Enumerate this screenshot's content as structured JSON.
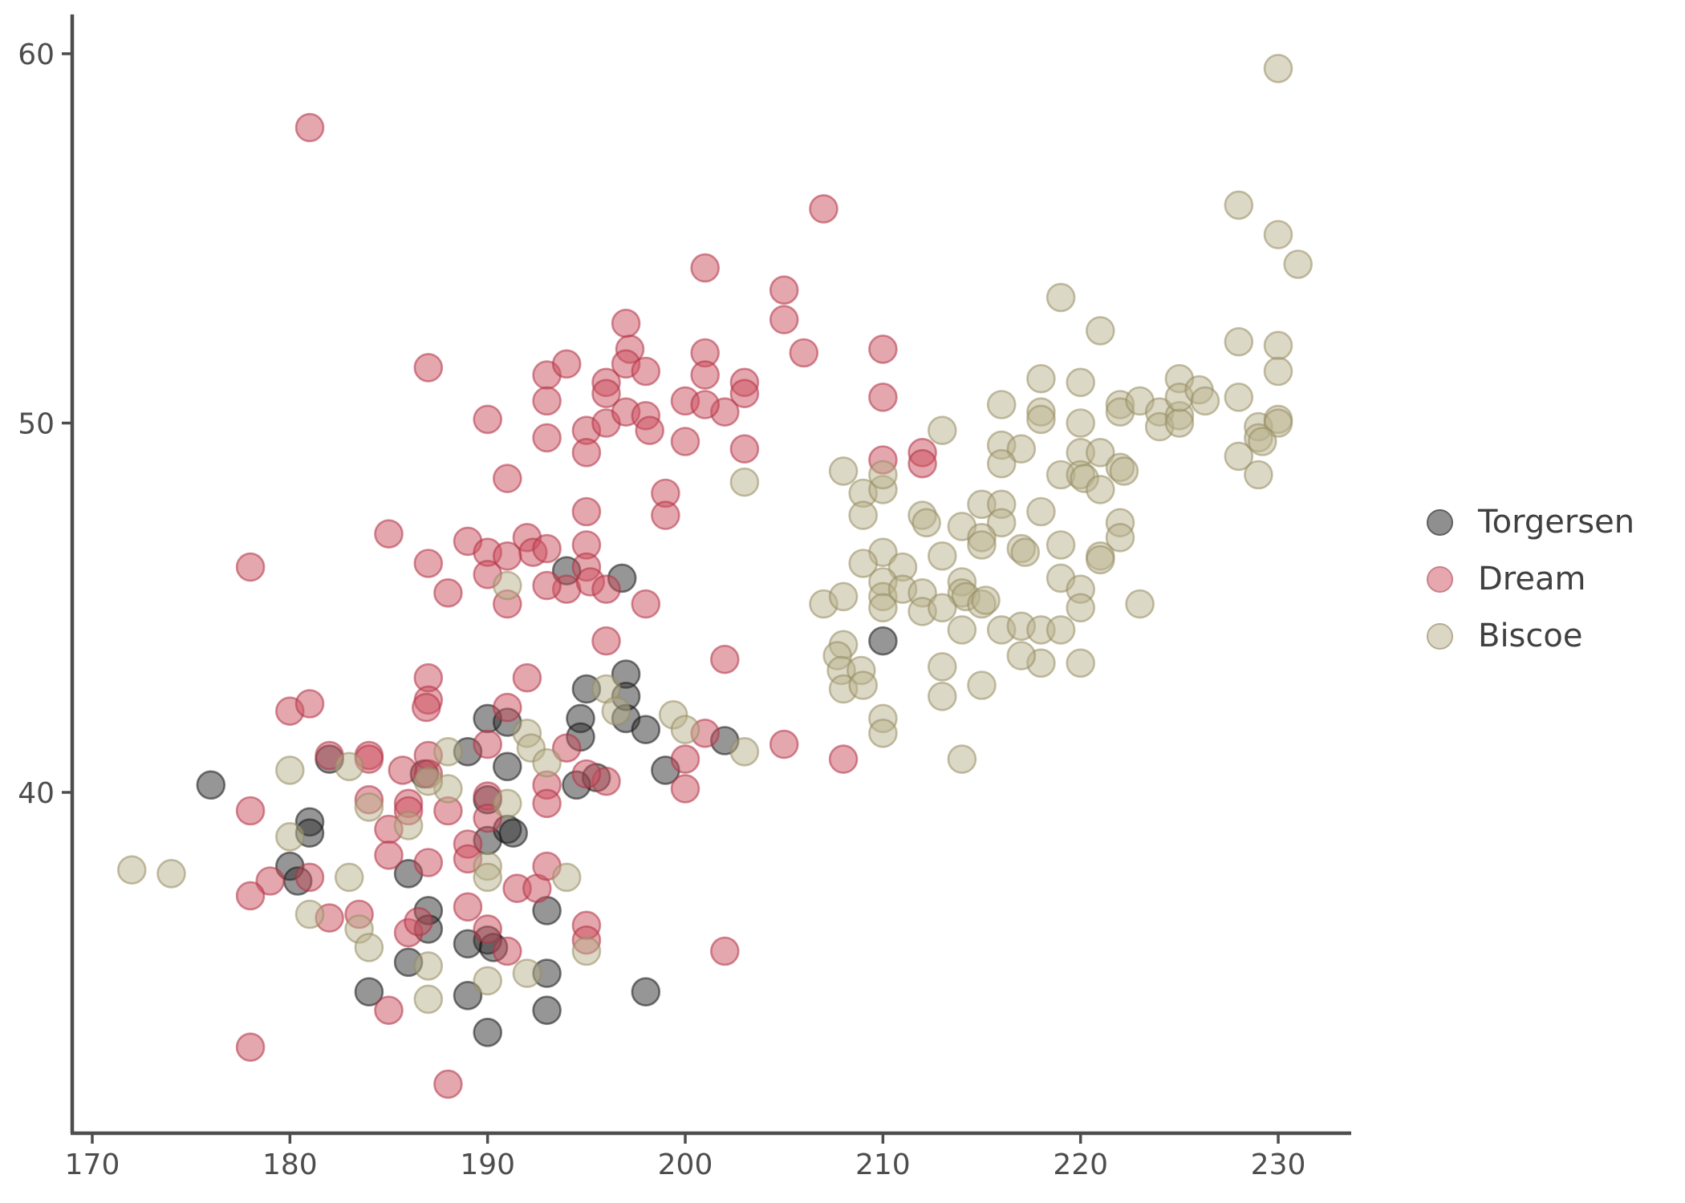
{
  "chart_data": {
    "type": "scatter",
    "title": "",
    "xlabel": "",
    "ylabel": "",
    "x_ticks": [
      170,
      180,
      190,
      200,
      210,
      220,
      230
    ],
    "y_ticks": [
      40,
      50,
      60
    ],
    "xlim": [
      169.0,
      233.7
    ],
    "ylim": [
      30.8,
      60.3
    ],
    "grid": false,
    "legend_position": "right",
    "marker": {
      "radius": 17,
      "fill_opacity": 0.5,
      "stroke_opacity": 0.55,
      "stroke_width": 2.6
    },
    "series": [
      {
        "name": "Torgersen",
        "fill_base": "#2e2e2e",
        "stroke_base": "#161616",
        "points": [
          [
            176,
            40.2
          ],
          [
            181,
            39.2
          ],
          [
            181,
            38.9
          ],
          [
            182,
            40.9
          ],
          [
            180,
            38.0
          ],
          [
            180.4,
            37.6
          ],
          [
            184,
            34.6
          ],
          [
            186,
            37.8
          ],
          [
            187,
            36.8
          ],
          [
            187,
            36.3
          ],
          [
            186,
            35.4
          ],
          [
            189,
            41.1
          ],
          [
            190,
            42.0
          ],
          [
            191,
            41.9
          ],
          [
            191,
            40.7
          ],
          [
            194.7,
            42.0
          ],
          [
            194.7,
            41.5
          ],
          [
            197,
            42.0
          ],
          [
            198,
            41.7
          ],
          [
            199,
            40.6
          ],
          [
            202,
            41.4
          ],
          [
            190,
            38.7
          ],
          [
            191,
            39.0
          ],
          [
            191.3,
            38.9
          ],
          [
            190,
            39.8
          ],
          [
            193,
            36.8
          ],
          [
            190,
            36.0
          ],
          [
            189,
            35.9
          ],
          [
            190.3,
            35.8
          ],
          [
            193,
            35.1
          ],
          [
            189,
            34.5
          ],
          [
            193,
            34.1
          ],
          [
            190,
            33.5
          ],
          [
            198,
            34.6
          ],
          [
            195,
            42.8
          ],
          [
            197,
            43.2
          ],
          [
            197,
            42.6
          ],
          [
            194,
            46.0
          ],
          [
            196.8,
            45.8
          ],
          [
            210,
            44.1
          ],
          [
            186.8,
            40.5
          ],
          [
            195.5,
            40.4
          ],
          [
            194.5,
            40.2
          ]
        ]
      },
      {
        "name": "Dream",
        "fill_base": "#cb4f5d",
        "stroke_base": "#b13246",
        "points": [
          [
            181,
            58.0
          ],
          [
            187,
            51.5
          ],
          [
            193,
            51.3
          ],
          [
            194,
            51.6
          ],
          [
            196,
            51.1
          ],
          [
            197,
            52.7
          ],
          [
            197.2,
            52.0
          ],
          [
            197,
            51.6
          ],
          [
            198,
            51.4
          ],
          [
            201,
            54.2
          ],
          [
            201,
            51.9
          ],
          [
            201,
            51.3
          ],
          [
            207,
            55.8
          ],
          [
            205,
            53.6
          ],
          [
            205,
            52.8
          ],
          [
            206,
            51.9
          ],
          [
            210,
            52.0
          ],
          [
            203,
            51.1
          ],
          [
            203,
            50.8
          ],
          [
            202,
            50.3
          ],
          [
            210,
            50.7
          ],
          [
            203,
            49.3
          ],
          [
            210,
            49.0
          ],
          [
            212,
            49.2
          ],
          [
            212,
            48.9
          ],
          [
            185,
            47.0
          ],
          [
            178,
            46.1
          ],
          [
            180,
            42.2
          ],
          [
            181,
            42.4
          ],
          [
            184,
            41.0
          ],
          [
            190,
            50.1
          ],
          [
            193,
            50.6
          ],
          [
            193,
            49.6
          ],
          [
            195,
            49.8
          ],
          [
            195,
            49.2
          ],
          [
            196,
            50.0
          ],
          [
            196,
            50.8
          ],
          [
            197,
            50.3
          ],
          [
            198,
            50.2
          ],
          [
            198.2,
            49.8
          ],
          [
            200,
            50.6
          ],
          [
            201,
            50.5
          ],
          [
            200,
            49.5
          ],
          [
            191,
            48.5
          ],
          [
            199,
            48.1
          ],
          [
            199,
            47.5
          ],
          [
            195,
            47.6
          ],
          [
            189,
            46.8
          ],
          [
            192,
            46.9
          ],
          [
            192.3,
            46.5
          ],
          [
            190,
            46.5
          ],
          [
            191,
            46.4
          ],
          [
            193,
            46.6
          ],
          [
            187,
            46.2
          ],
          [
            195,
            46.7
          ],
          [
            195,
            46.1
          ],
          [
            194,
            45.5
          ],
          [
            190,
            45.9
          ],
          [
            191,
            45.1
          ],
          [
            193,
            45.6
          ],
          [
            195.2,
            45.7
          ],
          [
            196,
            45.5
          ],
          [
            188,
            45.4
          ],
          [
            198,
            45.1
          ],
          [
            196,
            44.1
          ],
          [
            187,
            43.1
          ],
          [
            187,
            42.5
          ],
          [
            186.9,
            42.3
          ],
          [
            192,
            43.1
          ],
          [
            191,
            42.3
          ],
          [
            194,
            41.2
          ],
          [
            202,
            43.6
          ],
          [
            201,
            41.6
          ],
          [
            205,
            41.3
          ],
          [
            208,
            40.9
          ],
          [
            178,
            39.5
          ],
          [
            182,
            41.0
          ],
          [
            184,
            40.9
          ],
          [
            184,
            39.8
          ],
          [
            185,
            39.0
          ],
          [
            179,
            37.6
          ],
          [
            178,
            37.2
          ],
          [
            181,
            37.7
          ],
          [
            185,
            38.3
          ],
          [
            182,
            36.6
          ],
          [
            183.5,
            36.7
          ],
          [
            185,
            34.1
          ],
          [
            178,
            33.1
          ],
          [
            188,
            32.1
          ],
          [
            187,
            41.0
          ],
          [
            187,
            40.5
          ],
          [
            190,
            41.3
          ],
          [
            193,
            40.2
          ],
          [
            193,
            39.7
          ],
          [
            196,
            40.3
          ],
          [
            200,
            40.1
          ],
          [
            186,
            39.7
          ],
          [
            186,
            39.5
          ],
          [
            188,
            39.5
          ],
          [
            190,
            39.9
          ],
          [
            190,
            39.3
          ],
          [
            189,
            38.6
          ],
          [
            189,
            38.2
          ],
          [
            191.5,
            37.4
          ],
          [
            192.5,
            37.4
          ],
          [
            193,
            38.0
          ],
          [
            189,
            36.9
          ],
          [
            190,
            36.3
          ],
          [
            191,
            35.7
          ],
          [
            195,
            36.4
          ],
          [
            195,
            36.0
          ],
          [
            186,
            36.2
          ],
          [
            186.5,
            36.5
          ],
          [
            187,
            38.1
          ],
          [
            202,
            35.7
          ],
          [
            200,
            40.9
          ],
          [
            185.7,
            40.6
          ],
          [
            195,
            40.5
          ]
        ]
      },
      {
        "name": "Biscoe",
        "fill_base": "#b9b18d",
        "stroke_base": "#958c60",
        "points": [
          [
            230,
            59.6
          ],
          [
            228,
            55.9
          ],
          [
            230,
            55.1
          ],
          [
            231,
            54.3
          ],
          [
            219,
            53.4
          ],
          [
            221,
            52.5
          ],
          [
            228,
            52.2
          ],
          [
            230,
            52.1
          ],
          [
            230,
            51.4
          ],
          [
            225,
            51.2
          ],
          [
            218,
            51.2
          ],
          [
            220,
            51.1
          ],
          [
            222,
            50.5
          ],
          [
            222,
            50.3
          ],
          [
            223,
            50.6
          ],
          [
            224,
            50.3
          ],
          [
            224,
            49.9
          ],
          [
            225,
            50.2
          ],
          [
            225,
            50.0
          ],
          [
            225,
            50.7
          ],
          [
            226,
            50.9
          ],
          [
            226.3,
            50.6
          ],
          [
            228,
            50.7
          ],
          [
            220,
            50.0
          ],
          [
            218,
            50.3
          ],
          [
            218,
            50.1
          ],
          [
            229,
            49.9
          ],
          [
            230,
            50.1
          ],
          [
            230,
            50.0
          ],
          [
            229,
            49.6
          ],
          [
            229.2,
            49.5
          ],
          [
            228,
            49.1
          ],
          [
            229,
            48.6
          ],
          [
            220,
            49.2
          ],
          [
            221,
            49.2
          ],
          [
            219,
            48.6
          ],
          [
            220,
            48.6
          ],
          [
            220.2,
            48.5
          ],
          [
            222,
            48.8
          ],
          [
            222.2,
            48.7
          ],
          [
            221,
            48.2
          ],
          [
            218,
            47.6
          ],
          [
            216,
            50.5
          ],
          [
            216,
            49.4
          ],
          [
            217,
            49.3
          ],
          [
            216,
            48.9
          ],
          [
            213,
            49.8
          ],
          [
            208,
            48.7
          ],
          [
            209,
            48.1
          ],
          [
            210,
            48.2
          ],
          [
            210,
            48.6
          ],
          [
            209,
            47.5
          ],
          [
            212,
            47.5
          ],
          [
            212.2,
            47.3
          ],
          [
            215,
            47.8
          ],
          [
            216,
            47.8
          ],
          [
            216,
            47.3
          ],
          [
            214,
            47.2
          ],
          [
            215,
            46.9
          ],
          [
            215,
            46.7
          ],
          [
            217,
            46.6
          ],
          [
            217.2,
            46.5
          ],
          [
            210,
            46.5
          ],
          [
            209,
            46.2
          ],
          [
            211,
            46.1
          ],
          [
            213,
            46.4
          ],
          [
            214,
            45.7
          ],
          [
            214,
            45.4
          ],
          [
            214.2,
            45.3
          ],
          [
            210,
            45.7
          ],
          [
            210,
            45.3
          ],
          [
            210,
            45.0
          ],
          [
            211,
            45.5
          ],
          [
            212,
            45.4
          ],
          [
            212,
            44.9
          ],
          [
            213,
            45.0
          ],
          [
            215,
            45.1
          ],
          [
            215.2,
            45.2
          ],
          [
            207,
            45.1
          ],
          [
            208,
            45.3
          ],
          [
            214,
            44.4
          ],
          [
            216,
            44.4
          ],
          [
            217,
            44.5
          ],
          [
            218,
            44.4
          ],
          [
            203,
            48.4
          ],
          [
            222,
            47.3
          ],
          [
            222,
            46.9
          ],
          [
            219,
            46.7
          ],
          [
            221,
            46.4
          ],
          [
            221,
            46.3
          ],
          [
            219,
            45.8
          ],
          [
            220,
            45.5
          ],
          [
            220,
            45.0
          ],
          [
            223,
            45.1
          ],
          [
            219,
            44.4
          ],
          [
            220,
            43.5
          ],
          [
            218,
            43.5
          ],
          [
            208,
            44.0
          ],
          [
            207.7,
            43.7
          ],
          [
            207.9,
            43.3
          ],
          [
            208.9,
            43.3
          ],
          [
            208,
            42.8
          ],
          [
            209,
            42.9
          ],
          [
            213,
            43.4
          ],
          [
            215,
            42.9
          ],
          [
            213,
            42.6
          ],
          [
            217,
            43.7
          ],
          [
            210,
            42.0
          ],
          [
            210,
            41.6
          ],
          [
            203,
            41.1
          ],
          [
            214,
            40.9
          ],
          [
            172,
            37.9
          ],
          [
            174,
            37.8
          ],
          [
            180,
            40.6
          ],
          [
            183,
            40.7
          ],
          [
            184,
            39.6
          ],
          [
            180,
            38.8
          ],
          [
            183,
            37.7
          ],
          [
            181,
            36.7
          ],
          [
            183.5,
            36.3
          ],
          [
            184,
            35.8
          ],
          [
            188,
            41.1
          ],
          [
            188,
            40.1
          ],
          [
            186,
            39.1
          ],
          [
            191,
            39.7
          ],
          [
            190,
            38.0
          ],
          [
            190,
            37.7
          ],
          [
            192,
            41.6
          ],
          [
            192.2,
            41.2
          ],
          [
            193,
            40.8
          ],
          [
            194,
            37.7
          ],
          [
            192,
            35.1
          ],
          [
            190,
            34.9
          ],
          [
            187,
            35.3
          ],
          [
            187,
            34.4
          ],
          [
            195,
            35.7
          ],
          [
            191,
            45.6
          ],
          [
            196,
            42.8
          ],
          [
            196.5,
            42.2
          ],
          [
            199.4,
            42.1
          ],
          [
            200,
            41.7
          ],
          [
            187,
            40.3
          ]
        ]
      }
    ]
  },
  "axis": {
    "line_color": "#4d4d4d",
    "tick_color": "#4d4d4d",
    "label_color": "#4d4d4d",
    "x_tick_labels": [
      "170",
      "180",
      "190",
      "200",
      "210",
      "220",
      "230"
    ],
    "y_tick_labels": [
      "40",
      "50",
      "60"
    ]
  },
  "legend": {
    "entries": [
      {
        "label": "Torgersen",
        "fill": "#8f8f8f",
        "stroke": "#5f5f5f"
      },
      {
        "label": "Dream",
        "fill": "#e7a7af",
        "stroke": "#c9818b"
      },
      {
        "label": "Biscoe",
        "fill": "#dcd7c5",
        "stroke": "#b3ac8f"
      }
    ]
  }
}
